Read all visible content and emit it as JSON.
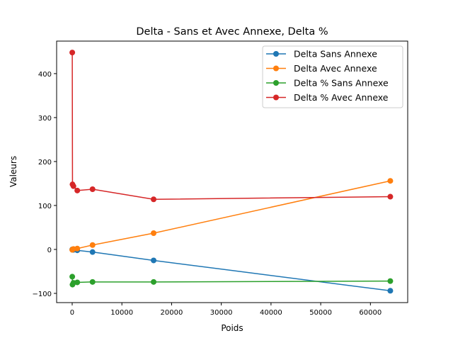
{
  "chart_data": {
    "type": "line",
    "title": "Delta - Sans et Avec Annexe, Delta %",
    "xlabel": "Poids",
    "ylabel": "Valeurs",
    "xlim": [
      -3130,
      67500
    ],
    "ylim": [
      -121,
      474
    ],
    "xticks": [
      0,
      10000,
      20000,
      30000,
      40000,
      50000,
      60000
    ],
    "yticks": [
      -100,
      0,
      100,
      200,
      300,
      400
    ],
    "grid": false,
    "legend_position": "top-right",
    "x": [
      16,
      64,
      256,
      1024,
      4096,
      16384,
      64000
    ],
    "series": [
      {
        "name": "Delta Sans Annexe",
        "color": "#1f77b4",
        "values": [
          0,
          0,
          -1,
          -2,
          -6,
          -25,
          -94
        ]
      },
      {
        "name": "Delta Avec Annexe",
        "color": "#ff7f0e",
        "values": [
          -1,
          0,
          1,
          2,
          10,
          37,
          156
        ]
      },
      {
        "name": "Delta % Sans Annexe",
        "color": "#2ca02c",
        "values": [
          -62,
          -80,
          -76,
          -75,
          -74,
          -74,
          -72
        ]
      },
      {
        "name": "Delta % Avec Annexe",
        "color": "#d62728",
        "values": [
          448,
          148,
          144,
          134,
          137,
          114,
          120
        ]
      }
    ]
  }
}
